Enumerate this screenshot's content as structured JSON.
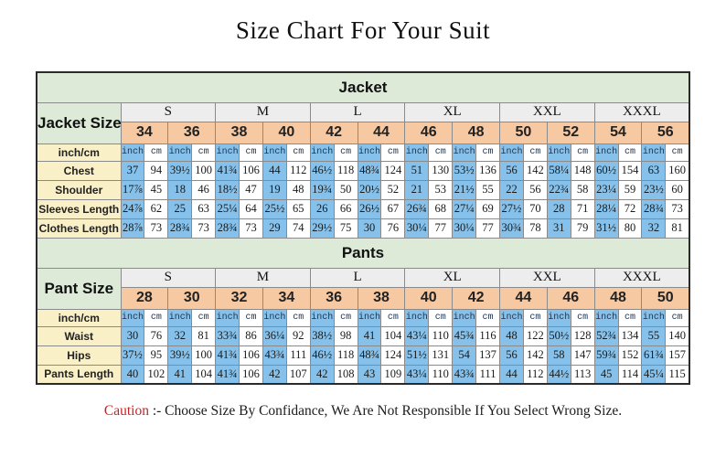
{
  "title": "Size Chart For Your Suit",
  "caution": {
    "label": "Caution",
    "text": ":- Choose Size By Confidance, We Are Not Responsible If You Select Wrong Size."
  },
  "colors": {
    "band_green": "#dcead7",
    "label_yellow": "#faf0c8",
    "size_peach": "#f6c9a2",
    "group_gray": "#ededed",
    "inch_blue": "#85c1ea",
    "caution_red": "#cc2020"
  },
  "chart_data": {
    "type": "table",
    "title": "Size Chart For Your Suit",
    "unit_row_label": "inch/cm",
    "unit_labels": [
      "inch",
      "cm"
    ],
    "sections": [
      {
        "title": "Jacket",
        "size_label": "Jacket Size",
        "groups": [
          {
            "label": "S",
            "sizes": [
              "34",
              "36"
            ]
          },
          {
            "label": "M",
            "sizes": [
              "38",
              "40"
            ]
          },
          {
            "label": "L",
            "sizes": [
              "42",
              "44"
            ]
          },
          {
            "label": "XL",
            "sizes": [
              "46",
              "48"
            ]
          },
          {
            "label": "XXL",
            "sizes": [
              "50",
              "52"
            ]
          },
          {
            "label": "XXXL",
            "sizes": [
              "54",
              "56"
            ]
          }
        ],
        "rows": [
          {
            "label": "Chest",
            "pairs": [
              [
                "37",
                "94"
              ],
              [
                "39½",
                "100"
              ],
              [
                "41¾",
                "106"
              ],
              [
                "44",
                "112"
              ],
              [
                "46½",
                "118"
              ],
              [
                "48¾",
                "124"
              ],
              [
                "51",
                "130"
              ],
              [
                "53½",
                "136"
              ],
              [
                "56",
                "142"
              ],
              [
                "58¼",
                "148"
              ],
              [
                "60½",
                "154"
              ],
              [
                "63",
                "160"
              ]
            ]
          },
          {
            "label": "Shoulder",
            "pairs": [
              [
                "17⅞",
                "45"
              ],
              [
                "18",
                "46"
              ],
              [
                "18½",
                "47"
              ],
              [
                "19",
                "48"
              ],
              [
                "19¾",
                "50"
              ],
              [
                "20½",
                "52"
              ],
              [
                "21",
                "53"
              ],
              [
                "21½",
                "55"
              ],
              [
                "22",
                "56"
              ],
              [
                "22¾",
                "58"
              ],
              [
                "23¼",
                "59"
              ],
              [
                "23½",
                "60"
              ]
            ]
          },
          {
            "label": "Sleeves Length",
            "pairs": [
              [
                "24⅞",
                "62"
              ],
              [
                "25",
                "63"
              ],
              [
                "25¼",
                "64"
              ],
              [
                "25½",
                "65"
              ],
              [
                "26",
                "66"
              ],
              [
                "26½",
                "67"
              ],
              [
                "26¾",
                "68"
              ],
              [
                "27¼",
                "69"
              ],
              [
                "27½",
                "70"
              ],
              [
                "28",
                "71"
              ],
              [
                "28¼",
                "72"
              ],
              [
                "28¾",
                "73"
              ]
            ]
          },
          {
            "label": "Clothes Length",
            "pairs": [
              [
                "28⅞",
                "73"
              ],
              [
                "28¾",
                "73"
              ],
              [
                "28¾",
                "73"
              ],
              [
                "29",
                "74"
              ],
              [
                "29½",
                "75"
              ],
              [
                "30",
                "76"
              ],
              [
                "30¼",
                "77"
              ],
              [
                "30¼",
                "77"
              ],
              [
                "30¾",
                "78"
              ],
              [
                "31",
                "79"
              ],
              [
                "31½",
                "80"
              ],
              [
                "32",
                "81"
              ]
            ]
          }
        ]
      },
      {
        "title": "Pants",
        "size_label": "Pant Size",
        "groups": [
          {
            "label": "S",
            "sizes": [
              "28",
              "30"
            ]
          },
          {
            "label": "M",
            "sizes": [
              "32",
              "34"
            ]
          },
          {
            "label": "L",
            "sizes": [
              "36",
              "38"
            ]
          },
          {
            "label": "XL",
            "sizes": [
              "40",
              "42"
            ]
          },
          {
            "label": "XXL",
            "sizes": [
              "44",
              "46"
            ]
          },
          {
            "label": "XXXL",
            "sizes": [
              "48",
              "50"
            ]
          }
        ],
        "rows": [
          {
            "label": "Waist",
            "pairs": [
              [
                "30",
                "76"
              ],
              [
                "32",
                "81"
              ],
              [
                "33¾",
                "86"
              ],
              [
                "36¼",
                "92"
              ],
              [
                "38½",
                "98"
              ],
              [
                "41",
                "104"
              ],
              [
                "43¼",
                "110"
              ],
              [
                "45¾",
                "116"
              ],
              [
                "48",
                "122"
              ],
              [
                "50½",
                "128"
              ],
              [
                "52¾",
                "134"
              ],
              [
                "55",
                "140"
              ]
            ]
          },
          {
            "label": "Hips",
            "pairs": [
              [
                "37½",
                "95"
              ],
              [
                "39½",
                "100"
              ],
              [
                "41¾",
                "106"
              ],
              [
                "43¾",
                "111"
              ],
              [
                "46½",
                "118"
              ],
              [
                "48¾",
                "124"
              ],
              [
                "51½",
                "131"
              ],
              [
                "54",
                "137"
              ],
              [
                "56",
                "142"
              ],
              [
                "58",
                "147"
              ],
              [
                "59¾",
                "152"
              ],
              [
                "61¾",
                "157"
              ]
            ]
          },
          {
            "label": "Pants Length",
            "pairs": [
              [
                "40",
                "102"
              ],
              [
                "41",
                "104"
              ],
              [
                "41¾",
                "106"
              ],
              [
                "42",
                "107"
              ],
              [
                "42",
                "108"
              ],
              [
                "43",
                "109"
              ],
              [
                "43¼",
                "110"
              ],
              [
                "43¾",
                "111"
              ],
              [
                "44",
                "112"
              ],
              [
                "44½",
                "113"
              ],
              [
                "45",
                "114"
              ],
              [
                "45¼",
                "115"
              ]
            ]
          }
        ]
      }
    ]
  }
}
